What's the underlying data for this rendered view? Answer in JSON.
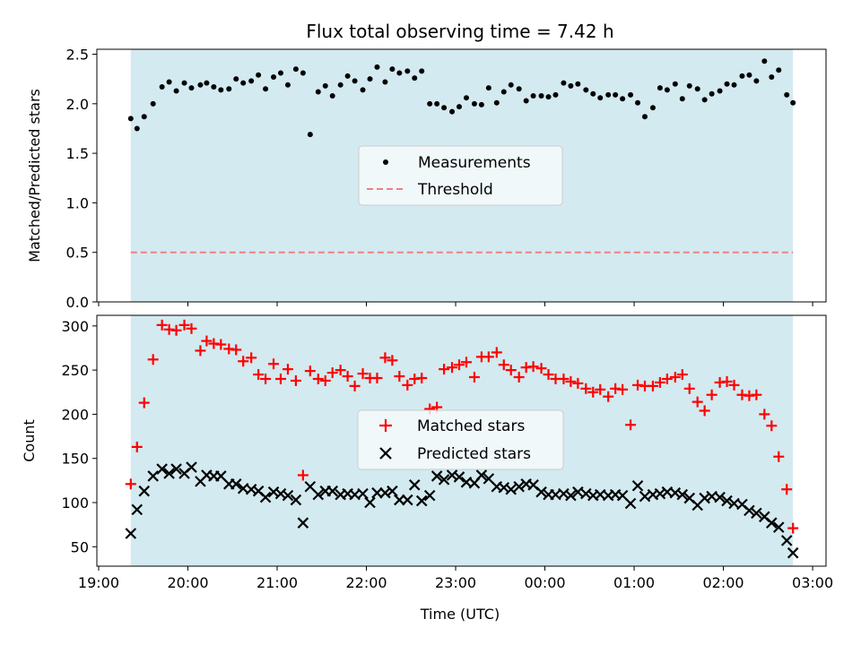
{
  "title": "Flux total observing time = 7.42 h",
  "colors": {
    "shade": "#d3eaf0",
    "threshold": "#f08080",
    "matched": "#ff0000",
    "predicted": "#000000",
    "measurement": "#000000"
  },
  "chart_data": [
    {
      "type": "scatter",
      "ylabel": "Matched/Predicted stars",
      "ylim": [
        0,
        2.55
      ],
      "yticks": [
        0.0,
        0.5,
        1.0,
        1.5,
        2.0,
        2.5
      ],
      "ytick_labels": [
        "0.0",
        "0.5",
        "1.0",
        "1.5",
        "2.0",
        "2.5"
      ],
      "shaded_span": [
        19.36,
        26.78
      ],
      "threshold": 0.5,
      "legend": [
        "Measurements",
        "Threshold"
      ],
      "legend_position": "center",
      "series": [
        {
          "name": "Measurements",
          "x": [
            19.36,
            19.43,
            19.51,
            19.61,
            19.71,
            19.79,
            19.87,
            19.96,
            20.04,
            20.14,
            20.21,
            20.29,
            20.37,
            20.46,
            20.54,
            20.62,
            20.71,
            20.79,
            20.87,
            20.96,
            21.04,
            21.12,
            21.21,
            21.29,
            21.37,
            21.46,
            21.54,
            21.62,
            21.71,
            21.79,
            21.87,
            21.96,
            22.04,
            22.12,
            22.21,
            22.29,
            22.37,
            22.46,
            22.54,
            22.62,
            22.71,
            22.79,
            22.87,
            22.96,
            23.04,
            23.12,
            23.21,
            23.29,
            23.37,
            23.46,
            23.54,
            23.62,
            23.71,
            23.79,
            23.87,
            23.96,
            24.04,
            24.12,
            24.21,
            24.29,
            24.37,
            24.46,
            24.54,
            24.62,
            24.71,
            24.79,
            24.87,
            24.96,
            25.04,
            25.12,
            25.21,
            25.29,
            25.37,
            25.46,
            25.54,
            25.62,
            25.71,
            25.79,
            25.87,
            25.96,
            26.04,
            26.12,
            26.21,
            26.29,
            26.37,
            26.46,
            26.54,
            26.62,
            26.71,
            26.78
          ],
          "y": [
            1.85,
            1.75,
            1.87,
            2.0,
            2.17,
            2.22,
            2.13,
            2.21,
            2.16,
            2.19,
            2.21,
            2.17,
            2.14,
            2.15,
            2.25,
            2.21,
            2.23,
            2.29,
            2.15,
            2.27,
            2.31,
            2.19,
            2.35,
            2.31,
            1.69,
            2.12,
            2.18,
            2.08,
            2.19,
            2.28,
            2.23,
            2.14,
            2.25,
            2.37,
            2.22,
            2.35,
            2.31,
            2.33,
            2.26,
            2.33,
            2.0,
            2.0,
            1.96,
            1.92,
            1.97,
            2.06,
            2.0,
            1.99,
            2.16,
            2.01,
            2.12,
            2.19,
            2.15,
            2.03,
            2.08,
            2.08,
            2.07,
            2.09,
            2.21,
            2.18,
            2.2,
            2.14,
            2.1,
            2.06,
            2.09,
            2.09,
            2.05,
            2.09,
            2.01,
            1.87,
            1.96,
            2.16,
            2.14,
            2.2,
            2.05,
            2.18,
            2.15,
            2.04,
            2.1,
            2.13,
            2.2,
            2.19,
            2.28,
            2.29,
            2.23,
            2.43,
            2.27,
            2.34,
            2.09,
            2.01
          ]
        }
      ]
    },
    {
      "type": "scatter",
      "ylabel": "Count",
      "xlabel": "Time (UTC)",
      "xlim": [
        18.98,
        27.15
      ],
      "ylim": [
        28,
        312
      ],
      "yticks": [
        50,
        100,
        150,
        200,
        250,
        300
      ],
      "ytick_labels": [
        "50",
        "100",
        "150",
        "200",
        "250",
        "300"
      ],
      "xticks": [
        19,
        20,
        21,
        22,
        23,
        24,
        25,
        26,
        27
      ],
      "xtick_labels": [
        "19:00",
        "20:00",
        "21:00",
        "22:00",
        "23:00",
        "00:00",
        "01:00",
        "02:00",
        "03:00"
      ],
      "shaded_span": [
        19.36,
        26.78
      ],
      "legend": [
        "Matched stars",
        "Predicted stars"
      ],
      "legend_position": "center",
      "series": [
        {
          "name": "Matched stars",
          "x": [
            19.36,
            19.43,
            19.51,
            19.61,
            19.71,
            19.79,
            19.87,
            19.96,
            20.04,
            20.14,
            20.21,
            20.29,
            20.37,
            20.46,
            20.54,
            20.62,
            20.71,
            20.79,
            20.87,
            20.96,
            21.04,
            21.12,
            21.21,
            21.29,
            21.37,
            21.46,
            21.54,
            21.62,
            21.71,
            21.79,
            21.87,
            21.96,
            22.04,
            22.12,
            22.21,
            22.29,
            22.37,
            22.46,
            22.54,
            22.62,
            22.71,
            22.79,
            22.87,
            22.96,
            23.04,
            23.12,
            23.21,
            23.29,
            23.37,
            23.46,
            23.54,
            23.62,
            23.71,
            23.79,
            23.87,
            23.96,
            24.04,
            24.12,
            24.21,
            24.29,
            24.37,
            24.46,
            24.54,
            24.62,
            24.71,
            24.79,
            24.87,
            24.96,
            25.04,
            25.12,
            25.21,
            25.29,
            25.37,
            25.46,
            25.54,
            25.62,
            25.71,
            25.79,
            25.87,
            25.96,
            26.04,
            26.12,
            26.21,
            26.29,
            26.37,
            26.46,
            26.54,
            26.62,
            26.71,
            26.78
          ],
          "y": [
            121,
            163,
            213,
            262,
            301,
            296,
            295,
            301,
            297,
            272,
            283,
            280,
            279,
            274,
            273,
            260,
            264,
            245,
            240,
            257,
            240,
            251,
            238,
            131,
            249,
            240,
            238,
            247,
            250,
            243,
            232,
            246,
            241,
            241,
            264,
            261,
            243,
            233,
            240,
            241,
            206,
            208,
            251,
            253,
            256,
            259,
            242,
            265,
            265,
            270,
            256,
            250,
            242,
            253,
            254,
            252,
            245,
            240,
            240,
            237,
            235,
            229,
            225,
            228,
            220,
            229,
            228,
            188,
            233,
            232,
            232,
            236,
            240,
            242,
            245,
            229,
            214,
            204,
            222,
            236,
            237,
            233,
            222,
            221,
            222,
            200,
            187,
            152,
            115,
            71
          ]
        },
        {
          "name": "Predicted stars",
          "x": [
            19.36,
            19.43,
            19.51,
            19.61,
            19.71,
            19.79,
            19.87,
            19.96,
            20.04,
            20.14,
            20.21,
            20.29,
            20.37,
            20.46,
            20.54,
            20.62,
            20.71,
            20.79,
            20.87,
            20.96,
            21.04,
            21.12,
            21.21,
            21.29,
            21.37,
            21.46,
            21.54,
            21.62,
            21.71,
            21.79,
            21.87,
            21.96,
            22.04,
            22.12,
            22.21,
            22.29,
            22.37,
            22.46,
            22.54,
            22.62,
            22.71,
            22.79,
            22.87,
            22.96,
            23.04,
            23.12,
            23.21,
            23.29,
            23.37,
            23.46,
            23.54,
            23.62,
            23.71,
            23.79,
            23.87,
            23.96,
            24.04,
            24.12,
            24.21,
            24.29,
            24.37,
            24.46,
            24.54,
            24.62,
            24.71,
            24.79,
            24.87,
            24.96,
            25.04,
            25.12,
            25.21,
            25.29,
            25.37,
            25.46,
            25.54,
            25.62,
            25.71,
            25.79,
            25.87,
            25.96,
            26.04,
            26.12,
            26.21,
            26.29,
            26.37,
            26.46,
            26.54,
            26.62,
            26.71,
            26.78
          ],
          "y": [
            65,
            92,
            113,
            130,
            138,
            133,
            138,
            133,
            140,
            124,
            131,
            130,
            130,
            121,
            121,
            116,
            115,
            113,
            106,
            112,
            110,
            108,
            103,
            77,
            118,
            109,
            113,
            113,
            109,
            110,
            109,
            110,
            100,
            111,
            111,
            113,
            103,
            103,
            120,
            102,
            108,
            130,
            126,
            131,
            129,
            123,
            122,
            131,
            127,
            118,
            117,
            115,
            118,
            121,
            120,
            112,
            109,
            109,
            110,
            108,
            112,
            110,
            108,
            109,
            108,
            109,
            108,
            99,
            119,
            107,
            109,
            110,
            112,
            111,
            109,
            105,
            97,
            105,
            107,
            106,
            102,
            99,
            98,
            91,
            88,
            84,
            77,
            72,
            57,
            43
          ]
        }
      ]
    }
  ]
}
